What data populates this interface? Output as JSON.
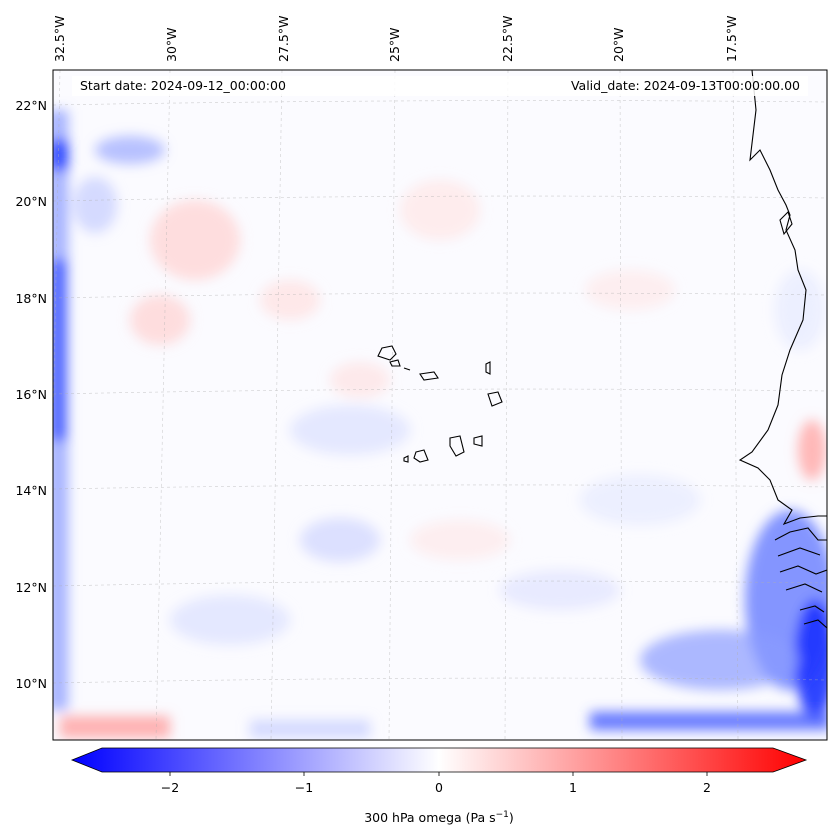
{
  "header": {
    "start_date": "Start date: 2024-09-12_00:00:00",
    "valid_date": "Valid_date: 2024-09-13T00:00:00.00"
  },
  "map": {
    "variable": "300 hPa omega",
    "lon_labels": [
      "32.5°W",
      "30°W",
      "27.5°W",
      "25°W",
      "22.5°W",
      "20°W",
      "17.5°W"
    ],
    "lat_labels": [
      "22°N",
      "20°N",
      "18°N",
      "16°N",
      "14°N",
      "12°N",
      "10°N"
    ]
  },
  "colorbar": {
    "label_main": "300 hPa omega (Pa s",
    "label_sup": "−1",
    "label_close": ")",
    "ticks": [
      "−2",
      "−1",
      "0",
      "1",
      "2"
    ],
    "low_color": "#0000ff",
    "mid_color": "#ffffff",
    "high_color": "#ff0000"
  }
}
